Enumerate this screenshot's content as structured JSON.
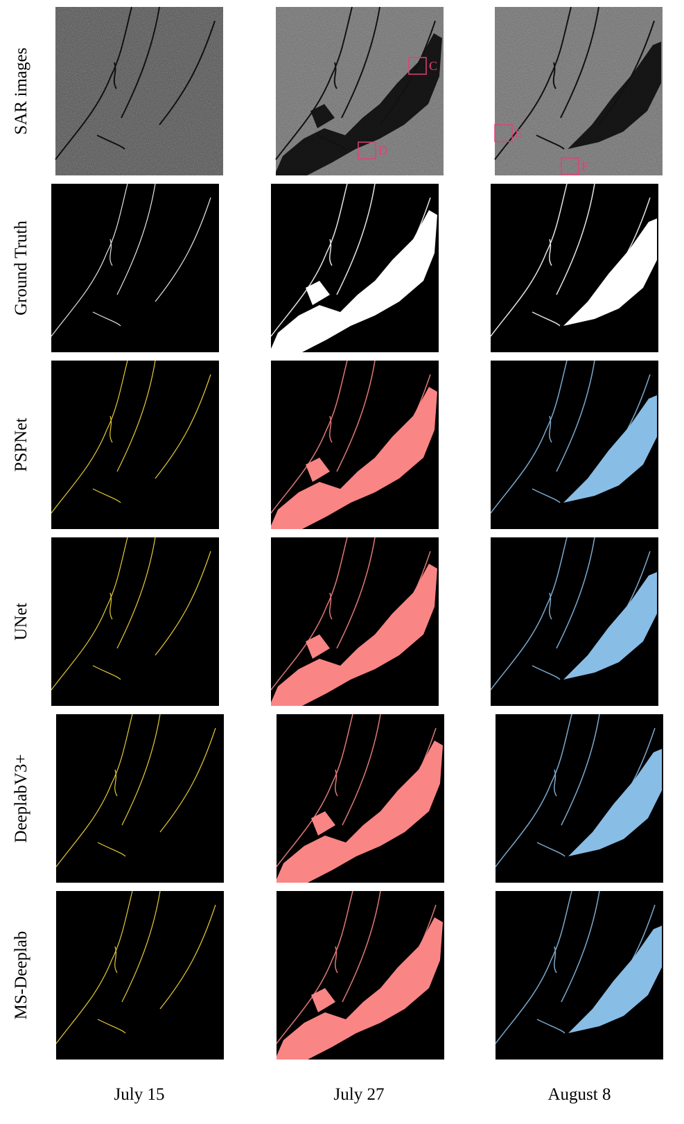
{
  "rows": [
    {
      "label": "SAR images"
    },
    {
      "label": "Ground Truth"
    },
    {
      "label": "PSPNet"
    },
    {
      "label": "UNet"
    },
    {
      "label": "DeeplabV3+"
    },
    {
      "label": "MS-Deeplab"
    }
  ],
  "columns": [
    "July 15",
    "July 27",
    "August 8"
  ],
  "annotations": [
    {
      "label": "C"
    },
    {
      "label": "D"
    },
    {
      "label": "E"
    },
    {
      "label": "F"
    }
  ]
}
